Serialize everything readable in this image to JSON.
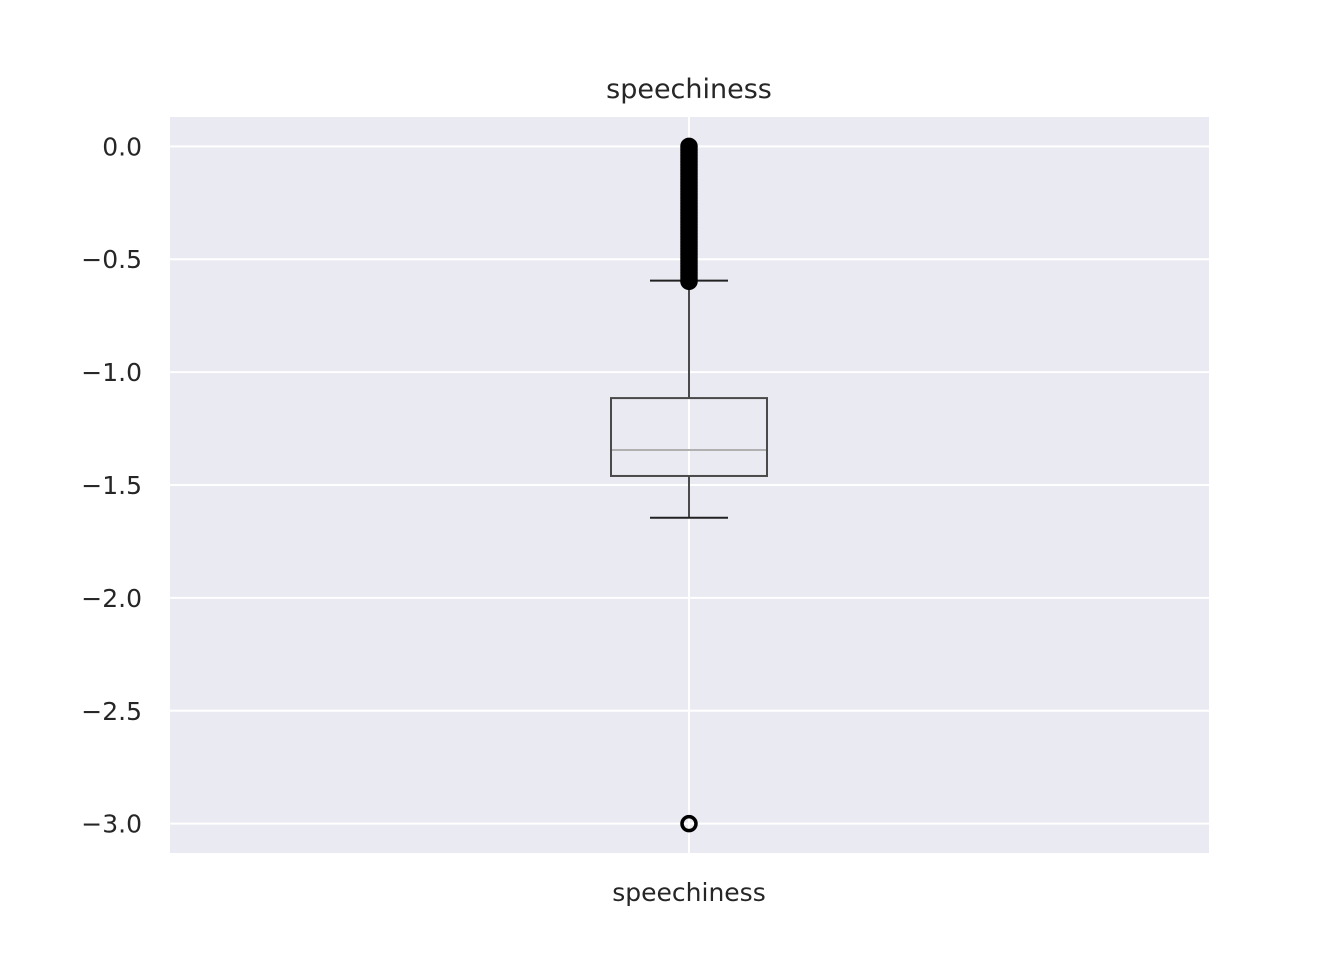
{
  "chart_data": {
    "type": "box",
    "title": "speechiness",
    "xlabel": "",
    "ylabel": "",
    "categories": [
      "speechiness"
    ],
    "ylim": [
      -3.13,
      0.13
    ],
    "yticks": [
      0.0,
      -0.5,
      -1.0,
      -1.5,
      -2.0,
      -2.5,
      -3.0
    ],
    "ytick_labels": [
      "0.0",
      "−0.5",
      "−1.0",
      "−1.5",
      "−2.0",
      "−2.5",
      "−3.0"
    ],
    "grid": true,
    "box": {
      "whisker_low": -1.645,
      "q1": -1.46,
      "median": -1.345,
      "q3 ": -1.115,
      "whisker_high": -0.595
    },
    "outliers_high_range": [
      -0.61,
      0.0
    ],
    "outliers_low": [
      -3.0
    ],
    "colors": {
      "plot_background": "#eaeaf2",
      "grid": "#ffffff",
      "box": "#4a4a4a",
      "median": "#b0b0b0",
      "outlier": "#000000"
    }
  }
}
